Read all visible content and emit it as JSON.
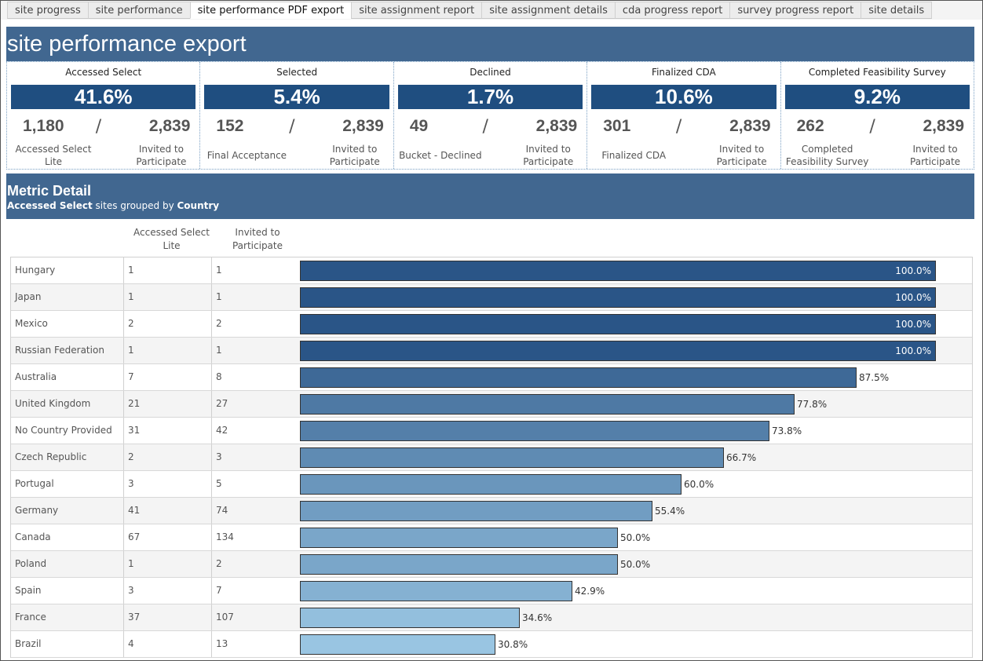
{
  "tabs": [
    {
      "label": "site progress",
      "active": false
    },
    {
      "label": "site performance",
      "active": false
    },
    {
      "label": "site performance PDF export",
      "active": true
    },
    {
      "label": "site assignment report",
      "active": false
    },
    {
      "label": "site assignment details",
      "active": false
    },
    {
      "label": "cda progress report",
      "active": false
    },
    {
      "label": "survey progress report",
      "active": false
    },
    {
      "label": "site details",
      "active": false
    }
  ],
  "header": {
    "title": "site performance export"
  },
  "kpis": [
    {
      "title": "Accessed Select",
      "percent": "41.6%",
      "numerator": "1,180",
      "denominator": "2,839",
      "num_label": "Accessed Select Lite",
      "den_label": "Invited to Participate"
    },
    {
      "title": "Selected",
      "percent": "5.4%",
      "numerator": "152",
      "denominator": "2,839",
      "num_label": "Final Acceptance",
      "den_label": "Invited to Participate"
    },
    {
      "title": "Declined",
      "percent": "1.7%",
      "numerator": "49",
      "denominator": "2,839",
      "num_label": "Bucket - Declined",
      "den_label": "Invited to Participate"
    },
    {
      "title": "Finalized CDA",
      "percent": "10.6%",
      "numerator": "301",
      "denominator": "2,839",
      "num_label": "Finalized CDA",
      "den_label": "Invited to Participate"
    },
    {
      "title": "Completed Feasibility Survey",
      "percent": "9.2%",
      "numerator": "262",
      "denominator": "2,839",
      "num_label": "Completed Feasibility Survey",
      "den_label": "Invited to Participate"
    }
  ],
  "kpi_slash": "/",
  "detail": {
    "title": "Metric Detail",
    "subtitle_metric": "Accessed Select",
    "subtitle_mid": " sites grouped by ",
    "subtitle_group": "Country"
  },
  "columns": {
    "accessed": "Accessed Select Lite",
    "invited": "Invited to Participate"
  },
  "colors": {
    "header_bg": "#416790",
    "kpi_bar": "#1f4e80",
    "bar_dark": "#2a5587",
    "bar_light": "#9ac6e3"
  },
  "rows": [
    {
      "country": "Hungary",
      "accessed": "1",
      "invited": "1",
      "pct": 100.0,
      "pct_label": "100.0%"
    },
    {
      "country": "Japan",
      "accessed": "1",
      "invited": "1",
      "pct": 100.0,
      "pct_label": "100.0%"
    },
    {
      "country": "Mexico",
      "accessed": "2",
      "invited": "2",
      "pct": 100.0,
      "pct_label": "100.0%"
    },
    {
      "country": "Russian Federation",
      "accessed": "1",
      "invited": "1",
      "pct": 100.0,
      "pct_label": "100.0%"
    },
    {
      "country": "Australia",
      "accessed": "7",
      "invited": "8",
      "pct": 87.5,
      "pct_label": "87.5%"
    },
    {
      "country": "United Kingdom",
      "accessed": "21",
      "invited": "27",
      "pct": 77.8,
      "pct_label": "77.8%"
    },
    {
      "country": "No Country Provided",
      "accessed": "31",
      "invited": "42",
      "pct": 73.8,
      "pct_label": "73.8%"
    },
    {
      "country": "Czech Republic",
      "accessed": "2",
      "invited": "3",
      "pct": 66.7,
      "pct_label": "66.7%"
    },
    {
      "country": "Portugal",
      "accessed": "3",
      "invited": "5",
      "pct": 60.0,
      "pct_label": "60.0%"
    },
    {
      "country": "Germany",
      "accessed": "41",
      "invited": "74",
      "pct": 55.4,
      "pct_label": "55.4%"
    },
    {
      "country": "Canada",
      "accessed": "67",
      "invited": "134",
      "pct": 50.0,
      "pct_label": "50.0%"
    },
    {
      "country": "Poland",
      "accessed": "1",
      "invited": "2",
      "pct": 50.0,
      "pct_label": "50.0%"
    },
    {
      "country": "Spain",
      "accessed": "3",
      "invited": "7",
      "pct": 42.9,
      "pct_label": "42.9%"
    },
    {
      "country": "France",
      "accessed": "37",
      "invited": "107",
      "pct": 34.6,
      "pct_label": "34.6%"
    },
    {
      "country": "Brazil",
      "accessed": "4",
      "invited": "13",
      "pct": 30.8,
      "pct_label": "30.8%"
    }
  ]
}
